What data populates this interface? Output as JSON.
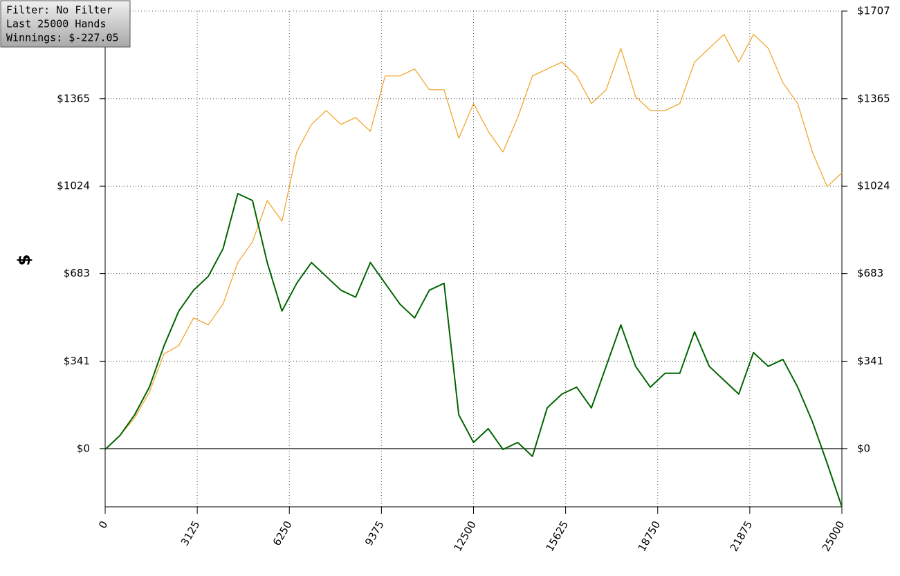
{
  "chart_data": {
    "type": "line",
    "y_label": "$",
    "annotations": [
      "Filter: No Filter",
      "Last  25000 Hands",
      "Winnings: $-227.05"
    ],
    "x": [
      0,
      500,
      1000,
      1500,
      2000,
      2500,
      3000,
      3500,
      4000,
      4500,
      5000,
      5500,
      6000,
      6500,
      7000,
      7500,
      8000,
      8500,
      9000,
      9500,
      10000,
      10500,
      11000,
      11500,
      12000,
      12500,
      13000,
      13500,
      14000,
      14500,
      15000,
      15500,
      16000,
      16500,
      17000,
      17500,
      18000,
      18500,
      19000,
      19500,
      20000,
      20500,
      21000,
      21500,
      22000,
      22500,
      23000,
      23500,
      24000,
      24500,
      25000
    ],
    "series": [
      {
        "color": "#f0a020",
        "values": [
          -3,
          51,
          120,
          220,
          370,
          402,
          510,
          483,
          564,
          726,
          807,
          968,
          887,
          1157,
          1265,
          1319,
          1265,
          1292,
          1238,
          1454,
          1454,
          1481,
          1400,
          1400,
          1211,
          1346,
          1238,
          1157,
          1292,
          1454,
          1481,
          1508,
          1454,
          1346,
          1400,
          1562,
          1373,
          1319,
          1319,
          1346,
          1508,
          1562,
          1616,
          1508,
          1616,
          1562,
          1427,
          1346,
          1157,
          1022,
          1076
        ]
      },
      {
        "color": "#006400",
        "values": [
          -3,
          51,
          132,
          240,
          402,
          537,
          618,
          672,
          780,
          995,
          968,
          726,
          537,
          645,
          726,
          672,
          618,
          591,
          726,
          645,
          564,
          510,
          618,
          645,
          132,
          24,
          78,
          -3,
          24,
          -30,
          159,
          213,
          240,
          159,
          321,
          483,
          321,
          240,
          294,
          294,
          456,
          321,
          267,
          213,
          375,
          321,
          348,
          240,
          105,
          -57,
          -227
        ]
      }
    ],
    "xlim": [
      0,
      25000
    ],
    "xticks": [
      0,
      3125,
      6250,
      9375,
      12500,
      15625,
      18750,
      21875,
      25000
    ],
    "ylim": [
      -227,
      1707
    ],
    "yticks": [
      {
        "value": 0,
        "label": "$0"
      },
      {
        "value": 341,
        "label": "$341"
      },
      {
        "value": 683,
        "label": "$683"
      },
      {
        "value": 1024,
        "label": "$1024"
      },
      {
        "value": 1365,
        "label": "$1365"
      },
      {
        "value": 1707,
        "label": "$1707"
      }
    ],
    "grid": true
  }
}
